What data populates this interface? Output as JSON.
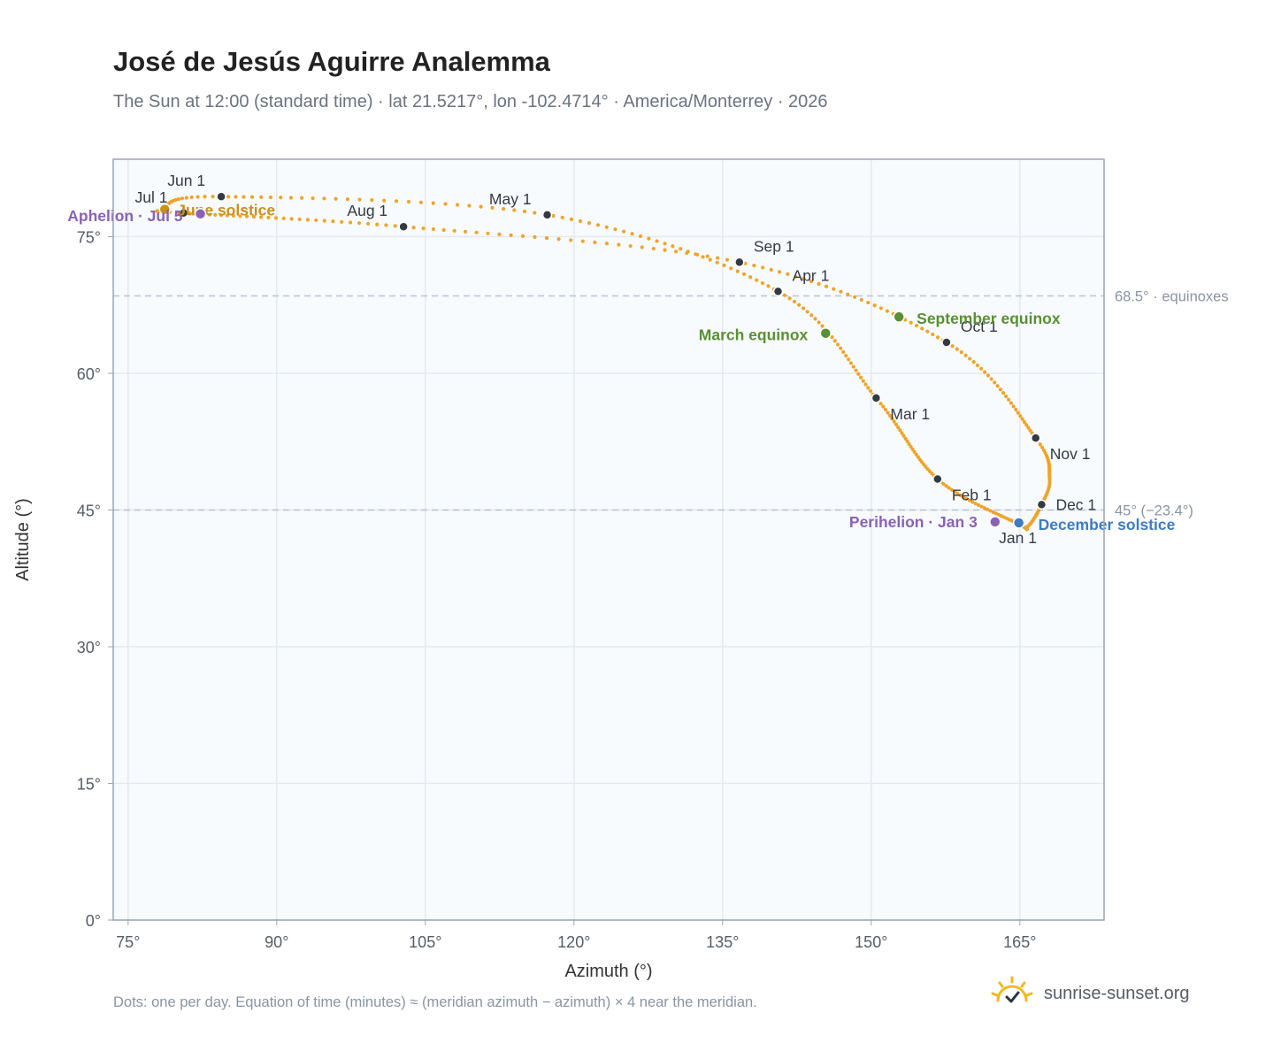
{
  "header": {
    "title": "José de Jesús Aguirre Analemma",
    "subtitle": "The Sun at 12:00 (standard time) · lat 21.5217°, lon -102.4714° · America/Monterrey · 2026"
  },
  "footer": {
    "note": "Dots: one per day. Equation of time (minutes) ≈ (meridian azimuth − azimuth) × 4 near the meridian.",
    "brand": "sunrise-sunset.org",
    "brand_icon": "sun-check-icon"
  },
  "colors": {
    "curve": "#f0a32a",
    "month_marker": "#333a44",
    "solstice_june": "#c9901e",
    "solstice_december": "#3d7cc0",
    "equinox": "#5a8f32",
    "apsis": "#8a62b5",
    "reference_line": "#b7c3d1",
    "plot_bg": "#f8fbfe",
    "grid": "#e3e9ef",
    "frame": "#9aa4b2"
  },
  "chart_data": {
    "type": "scatter",
    "xlabel": "Azimuth (°)",
    "ylabel": "Altitude (°)",
    "xlim": [
      73.5,
      173.5
    ],
    "ylim": [
      0,
      83.5
    ],
    "xticks": [
      75,
      90,
      105,
      120,
      135,
      150,
      165
    ],
    "xtick_labels": [
      "75°",
      "90°",
      "105°",
      "120°",
      "135°",
      "150°",
      "165°"
    ],
    "yticks": [
      0,
      15,
      30,
      45,
      60,
      75
    ],
    "ytick_labels": [
      "0°",
      "15°",
      "30°",
      "45°",
      "60°",
      "75°"
    ],
    "grid": true,
    "month_markers": [
      {
        "label": "Jan 1",
        "azimuth": 164.8,
        "altitude": 43.5
      },
      {
        "label": "Feb 1",
        "azimuth": 156.7,
        "altitude": 48.4
      },
      {
        "label": "Mar 1",
        "azimuth": 150.5,
        "altitude": 57.3
      },
      {
        "label": "Apr 1",
        "azimuth": 140.6,
        "altitude": 69.0
      },
      {
        "label": "May 1",
        "azimuth": 117.3,
        "altitude": 77.4
      },
      {
        "label": "Jun 1",
        "azimuth": 84.4,
        "altitude": 79.4
      },
      {
        "label": "Jul 1",
        "azimuth": 80.6,
        "altitude": 77.6
      },
      {
        "label": "Aug 1",
        "azimuth": 102.8,
        "altitude": 76.1
      },
      {
        "label": "Sep 1",
        "azimuth": 136.7,
        "altitude": 72.2
      },
      {
        "label": "Oct 1",
        "azimuth": 157.6,
        "altitude": 63.4
      },
      {
        "label": "Nov 1",
        "azimuth": 166.6,
        "altitude": 52.9
      },
      {
        "label": "Dec 1",
        "azimuth": 167.2,
        "altitude": 45.6
      }
    ],
    "events": [
      {
        "label": "June solstice",
        "kind": "solstice_june",
        "azimuth": 78.7,
        "altitude": 78.0
      },
      {
        "label": "December solstice",
        "kind": "solstice_december",
        "azimuth": 164.9,
        "altitude": 43.6
      },
      {
        "label": "March equinox",
        "kind": "equinox",
        "azimuth": 145.4,
        "altitude": 64.4
      },
      {
        "label": "September equinox",
        "kind": "equinox",
        "azimuth": 152.8,
        "altitude": 66.2
      },
      {
        "label": "Aphelion · Jul 5",
        "kind": "apsis",
        "azimuth": 82.3,
        "altitude": 77.5
      },
      {
        "label": "Perihelion · Jan 3",
        "kind": "apsis",
        "azimuth": 162.5,
        "altitude": 43.7
      }
    ],
    "reference_lines": [
      {
        "altitude": 68.5,
        "label": "68.5° · equinoxes"
      },
      {
        "altitude": 45,
        "label": "45° (−23.4°)"
      }
    ],
    "curve_anchors": [
      {
        "month": 0,
        "azimuth": 164.8,
        "altitude": 43.5
      },
      {
        "month": 1,
        "azimuth": 156.7,
        "altitude": 48.4
      },
      {
        "month": 2,
        "azimuth": 150.5,
        "altitude": 57.3
      },
      {
        "month": 3,
        "azimuth": 140.6,
        "altitude": 69.0
      },
      {
        "month": 4,
        "azimuth": 117.3,
        "altitude": 77.4
      },
      {
        "month": 5,
        "azimuth": 84.4,
        "altitude": 79.4
      },
      {
        "month": 5.65,
        "azimuth": 78.7,
        "altitude": 78.0
      },
      {
        "month": 6,
        "azimuth": 80.6,
        "altitude": 77.6
      },
      {
        "month": 7,
        "azimuth": 102.8,
        "altitude": 76.1
      },
      {
        "month": 8,
        "azimuth": 136.7,
        "altitude": 72.2
      },
      {
        "month": 9,
        "azimuth": 157.6,
        "altitude": 63.4
      },
      {
        "month": 10,
        "azimuth": 166.6,
        "altitude": 52.9
      },
      {
        "month": 10.6,
        "azimuth": 168.0,
        "altitude": 48.5
      },
      {
        "month": 11,
        "azimuth": 167.2,
        "altitude": 45.6
      },
      {
        "month": 11.55,
        "azimuth": 165.8,
        "altitude": 43.2
      },
      {
        "month": 12,
        "azimuth": 164.8,
        "altitude": 43.5
      }
    ]
  }
}
